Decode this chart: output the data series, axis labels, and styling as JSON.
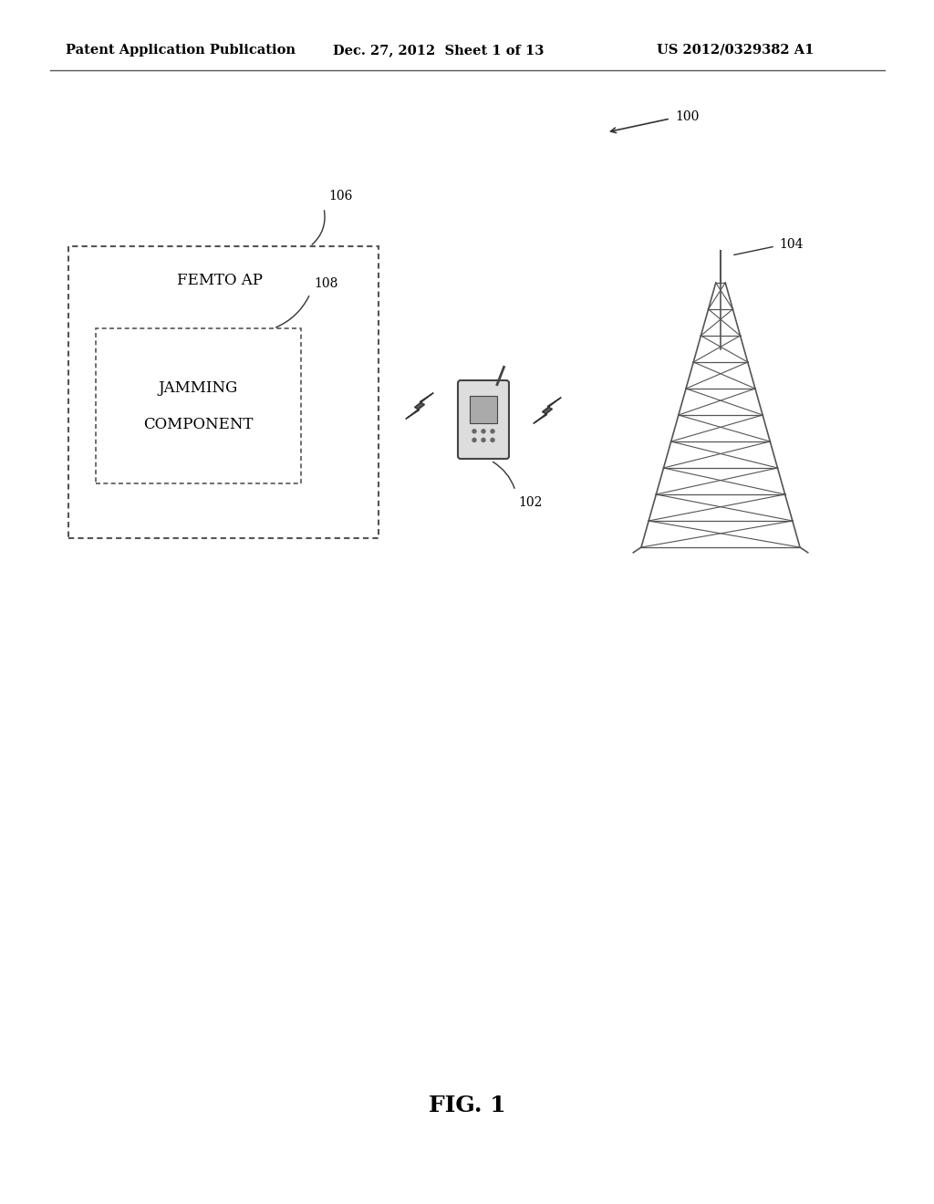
{
  "bg_color": "#ffffff",
  "header_left": "Patent Application Publication",
  "header_mid": "Dec. 27, 2012  Sheet 1 of 13",
  "header_right": "US 2012/0329382 A1",
  "fig_label": "FIG. 1",
  "diagram_label": "100",
  "outer_box_label": "106",
  "outer_box_text": "FEMTO AP",
  "inner_box_label": "108",
  "inner_box_text_line1": "JAMMING",
  "inner_box_text_line2": "COMPONENT",
  "phone_label": "102",
  "tower_label": "104",
  "text_color": "#000000",
  "box_edge_color": "#555555",
  "header_fontsize": 10.5,
  "label_fontsize": 10,
  "content_fontsize": 11
}
